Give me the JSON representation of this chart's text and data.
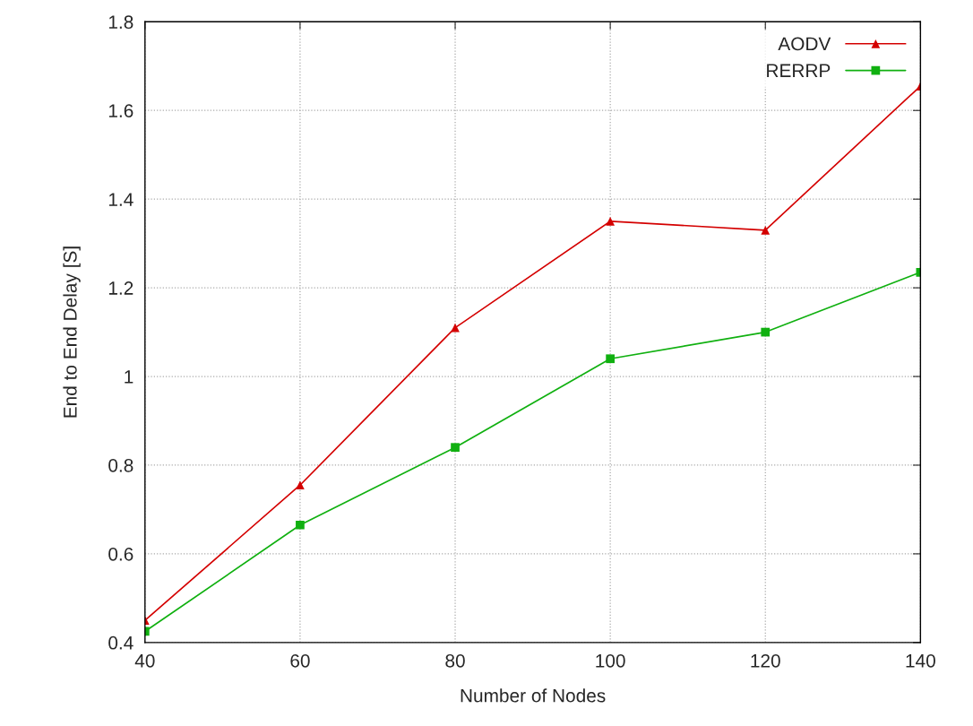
{
  "chart_data": {
    "type": "line",
    "xlabel": "Number of Nodes",
    "ylabel": "End to End Delay [S]",
    "x": [
      40,
      60,
      80,
      100,
      120,
      140
    ],
    "series": [
      {
        "name": "AODV",
        "color": "#d40000",
        "marker": "triangle",
        "values": [
          0.45,
          0.755,
          1.11,
          1.35,
          1.33,
          1.655
        ]
      },
      {
        "name": "RERRP",
        "color": "#10b010",
        "marker": "square",
        "values": [
          0.425,
          0.665,
          0.84,
          1.04,
          1.1,
          1.235
        ]
      }
    ],
    "xlim": [
      40,
      140
    ],
    "xticks": [
      40,
      60,
      80,
      100,
      120,
      140
    ],
    "ylim": [
      0.4,
      1.8
    ],
    "yticks": [
      0.4,
      0.6,
      0.8,
      1,
      1.2,
      1.4,
      1.6,
      1.8
    ],
    "grid": true,
    "legend": "top right",
    "line_style": "solid"
  }
}
